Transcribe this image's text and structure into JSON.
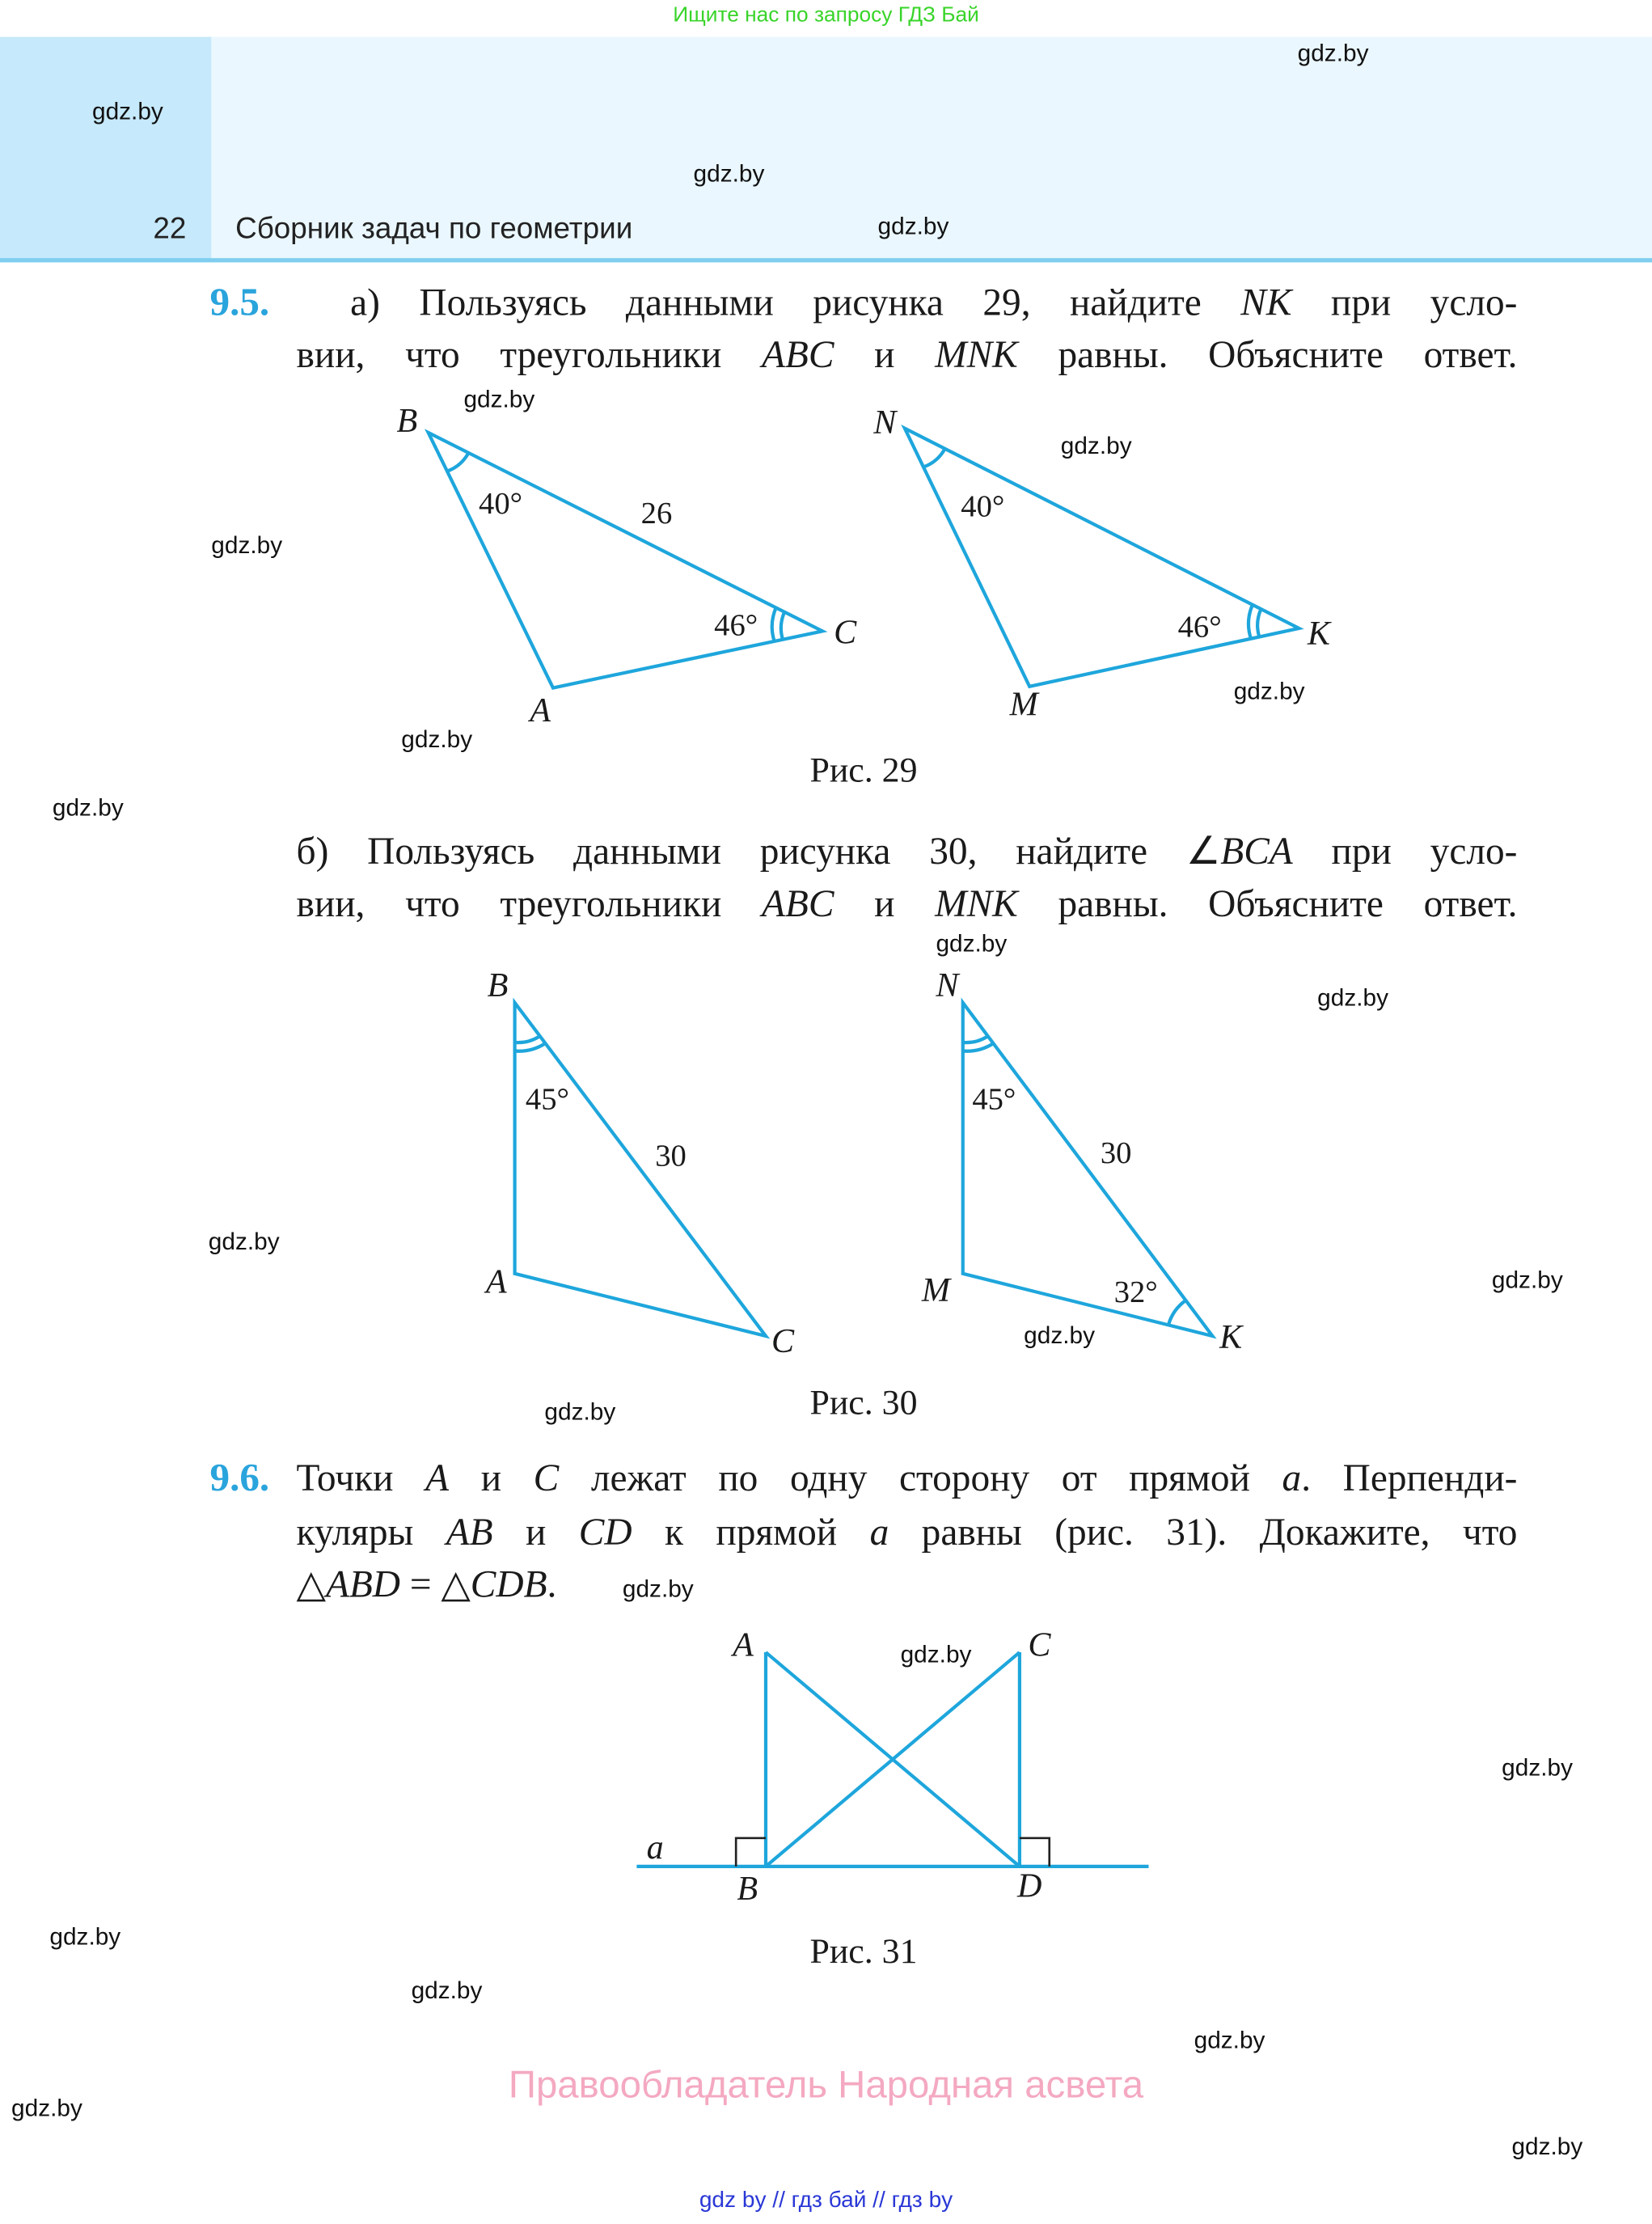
{
  "top_note": "Ищите нас по запросу ГДЗ Бай",
  "header": {
    "page_number": "22",
    "title": "Сборник задач по геометрии"
  },
  "colors": {
    "accent": "#2aa4dc",
    "figure_line": "#1ea6dc",
    "header_band": "#eaf7fe",
    "header_side": "#c6e9fb",
    "owner_text": "#f4a9c1",
    "top_note": "#39d42a",
    "footer_links": "#2a38d6"
  },
  "problem_9_5": {
    "number": "9.5.",
    "a_lines": [
      "а) Пользуясь данными рисунка 29, найдите NK при усло-",
      "вии, что треугольники ABC и MNK равны. Объясните ответ."
    ],
    "b_lines": [
      "б) Пользуясь данными рисунка 30, найдите ∠BCA при усло-",
      "вии, что треугольники ABC и MNK равны. Объясните ответ."
    ],
    "fig29": {
      "caption": "Рис. 29",
      "left": {
        "B": "B",
        "A": "A",
        "C": "C",
        "angle_B": "40°",
        "angle_C": "46°",
        "side_BC": "26"
      },
      "right": {
        "N": "N",
        "M": "M",
        "K": "K",
        "angle_N": "40°",
        "angle_K": "46°"
      }
    },
    "fig30": {
      "caption": "Рис. 30",
      "left": {
        "B": "B",
        "A": "A",
        "C": "C",
        "angle_B": "45°",
        "side_BC": "30"
      },
      "right": {
        "N": "N",
        "M": "M",
        "K": "K",
        "angle_N": "45°",
        "side_NK": "30",
        "angle_K": "32°"
      }
    }
  },
  "problem_9_6": {
    "number": "9.6.",
    "lines": [
      "Точки A и C лежат по одну сторону от прямой a. Перпенди-",
      "куляры AB и CD к прямой a равны (рис. 31). Докажите, что",
      "△ABD = △CDB."
    ],
    "fig31": {
      "caption": "Рис. 31",
      "A": "A",
      "B": "B",
      "C": "C",
      "D": "D",
      "line": "a"
    }
  },
  "watermark": "gdz.by",
  "owner": "Правообладатель Народная асвета",
  "footer": "gdz by  //  гдз бай  //  гдз by"
}
